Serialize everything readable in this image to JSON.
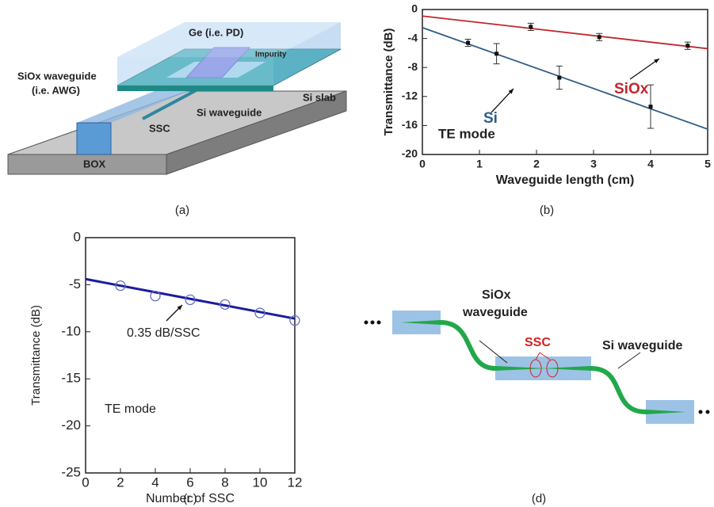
{
  "panels": {
    "a": {
      "label": "(a)",
      "ge": "Ge (i.e. PD)",
      "impurity": "Impurity",
      "siox_1": "SiOx waveguide",
      "siox_2": "(i.e. AWG)",
      "si_wg": "Si waveguide",
      "si_slab": "Si slab",
      "ssc": "SSC",
      "box": "BOX"
    },
    "b": {
      "label": "(b)"
    },
    "c": {
      "label": "(c)"
    },
    "d": {
      "label": "(d)",
      "siox_1": "SiOx",
      "siox_2": "waveguide",
      "ssc": "SSC",
      "si_wg": "Si waveguide"
    }
  },
  "chart_data": [
    {
      "type": "scatter",
      "x_label": "Waveguide length (cm)",
      "y_label": "Transmittance (dB)",
      "xlim": [
        0,
        5
      ],
      "xticks": [
        0,
        1,
        2,
        3,
        4,
        5
      ],
      "ylim": [
        -20,
        0
      ],
      "yticks": [
        0,
        -4,
        -8,
        -12,
        -16,
        -20
      ],
      "series": [
        {
          "name": "Si",
          "color": "#2f5d87",
          "x": [
            0.8,
            1.3,
            2.4,
            4.0
          ],
          "values": [
            -4.6,
            -6.1,
            -9.4,
            -13.4
          ],
          "errors": [
            0.5,
            1.4,
            1.6,
            3.0
          ],
          "fit": {
            "x": [
              0,
              5
            ],
            "values": [
              -2.5,
              -16.5
            ]
          }
        },
        {
          "name": "SiOx",
          "color": "#c0272d",
          "x": [
            1.9,
            3.1,
            4.65
          ],
          "values": [
            -2.4,
            -3.8,
            -5.0
          ],
          "errors": [
            0.5,
            0.5,
            0.5
          ],
          "fit": {
            "x": [
              0,
              5
            ],
            "values": [
              -0.9,
              -5.4
            ]
          }
        }
      ],
      "annotations": [
        "TE mode"
      ]
    },
    {
      "type": "scatter",
      "x_label": "Number of SSC",
      "y_label": "Transmittance (dB)",
      "xlim": [
        0,
        12
      ],
      "xticks": [
        0,
        2,
        4,
        6,
        8,
        10,
        12
      ],
      "ylim": [
        -25,
        0
      ],
      "yticks": [
        0,
        -5,
        -10,
        -15,
        -20,
        -25
      ],
      "series": [
        {
          "color": "#1c1c9c",
          "marker_color": "#6070c8",
          "x": [
            2,
            4,
            6,
            8,
            10,
            12
          ],
          "values": [
            -5.1,
            -6.2,
            -6.6,
            -7.1,
            -8.0,
            -8.8
          ],
          "fit": {
            "x": [
              0,
              12
            ],
            "values": [
              -4.4,
              -8.6
            ]
          }
        }
      ],
      "annotations": [
        "0.35 dB/SSC",
        "TE mode"
      ]
    }
  ]
}
